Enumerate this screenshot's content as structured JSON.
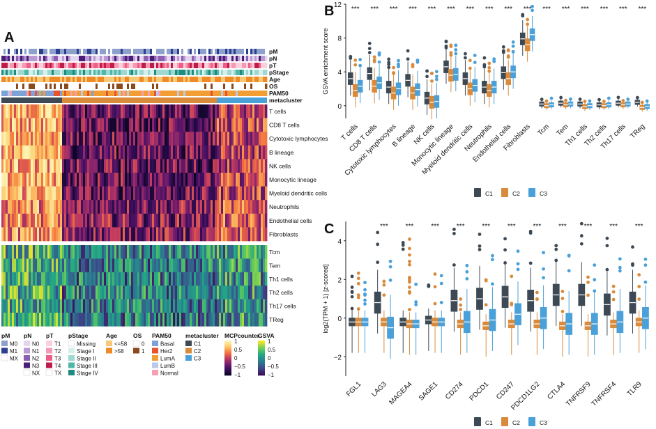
{
  "panels": {
    "A": {
      "letter": "A",
      "annotation_rows": [
        "pM",
        "pN",
        "pT",
        "pStage",
        "Age",
        "OS",
        "PAM50",
        "metacluster"
      ],
      "mcp_rows": [
        "T cells",
        "CD8 T cells",
        "Cytotoxic lymphocytes",
        "B lineage",
        "NK cells",
        "Monocytic lineage",
        "Myeloid dendritic cells",
        "Neutrophils",
        "Endothelial cells",
        "Fibroblasts"
      ],
      "gsva_rows": [
        "Tcm",
        "Tem",
        "Th1 cells",
        "Th2 cells",
        "Th17 cells",
        "TReg"
      ],
      "legend": {
        "pM": {
          "title": "pM",
          "items": [
            {
              "label": "M0",
              "color": "#8ea0cc"
            },
            {
              "label": "M1",
              "color": "#2b3f8f"
            },
            {
              "label": "MX",
              "color": "#ffffff"
            }
          ]
        },
        "pN": {
          "title": "pN",
          "items": [
            {
              "label": "N0",
              "color": "#e3d6ee"
            },
            {
              "label": "N1",
              "color": "#b99ad1"
            },
            {
              "label": "N2",
              "color": "#8a5fb1"
            },
            {
              "label": "N3",
              "color": "#4a1e78"
            },
            {
              "label": "NX",
              "color": "#ffffff"
            }
          ]
        },
        "pT": {
          "title": "pT",
          "items": [
            {
              "label": "T1",
              "color": "#fbd0dc"
            },
            {
              "label": "T2",
              "color": "#f59ab4"
            },
            {
              "label": "T3",
              "color": "#ee5e86"
            },
            {
              "label": "T4",
              "color": "#c01c4a"
            },
            {
              "label": "TX",
              "color": "#ffffff"
            }
          ]
        },
        "pStage": {
          "title": "pStage",
          "items": [
            {
              "label": "Missing",
              "color": "#ffffff"
            },
            {
              "label": "Stage I",
              "color": "#d7efec"
            },
            {
              "label": "Stage II",
              "color": "#9fd8d0"
            },
            {
              "label": "Stage III",
              "color": "#4fb7aa"
            },
            {
              "label": "Stage IV",
              "color": "#1e8a80"
            }
          ]
        },
        "Age": {
          "title": "Age",
          "items": [
            {
              "label": "<=58",
              "color": "#f7c878"
            },
            {
              "label": ">58",
              "color": "#f08a24"
            }
          ]
        },
        "OS": {
          "title": "OS",
          "items": [
            {
              "label": "0",
              "color": "#ffffff"
            },
            {
              "label": "1",
              "color": "#8a4a1c"
            }
          ]
        },
        "PAM50": {
          "title": "PAM50",
          "items": [
            {
              "label": "Basal",
              "color": "#7da2d8"
            },
            {
              "label": "Her2",
              "color": "#e6532d"
            },
            {
              "label": "LumA",
              "color": "#f29e34"
            },
            {
              "label": "LumB",
              "color": "#b9c9ea"
            },
            {
              "label": "Normal",
              "color": "#f4a2b3"
            }
          ]
        },
        "metacluster": {
          "title": "metacluster",
          "items": [
            {
              "label": "C1",
              "color": "#3d4a55"
            },
            {
              "label": "C2",
              "color": "#d98a3a"
            },
            {
              "label": "C3",
              "color": "#4aa0d8"
            }
          ]
        },
        "MCPcounter": {
          "title": "MCPcounter",
          "ticks": [
            "1",
            "0.5",
            "0",
            "−0.5",
            "−1"
          ]
        },
        "GSVA": {
          "title": "GSVA",
          "ticks": [
            "1",
            "0.5",
            "0",
            "−0.5",
            "−1"
          ]
        }
      }
    },
    "B": {
      "letter": "B"
    },
    "C": {
      "letter": "C"
    }
  },
  "colors": {
    "C1": "#3d4a55",
    "C2": "#d98a3a",
    "C3": "#4aa0d8"
  },
  "chart_data": [
    {
      "type": "box",
      "title": "",
      "ylabel": "GSVA enrichment score",
      "ylim": [
        -1.5,
        12
      ],
      "yticks": [
        0,
        4,
        8,
        12
      ],
      "categories": [
        "T cells",
        "CD8 T cells",
        "Cytotoxic lymphocytes",
        "B lineage",
        "NK cells",
        "Monocytic lineage",
        "Myeloid dendritic cells",
        "Neutrophils",
        "Endothelial cells",
        "Fibroblasts",
        "Tcm",
        "Tem",
        "Th1 cells",
        "Th2 cells",
        "Th17 cells",
        "TReg"
      ],
      "significance": [
        "***",
        "***",
        "***",
        "***",
        "***",
        "***",
        "***",
        "***",
        "***",
        "***",
        "***",
        "***",
        "***",
        "***",
        "***",
        "***"
      ],
      "legend": [
        "C1",
        "C2",
        "C3"
      ],
      "series": [
        {
          "name": "C1",
          "medians": [
            3.2,
            3.8,
            2.2,
            3.0,
            0.9,
            4.6,
            3.2,
            2.2,
            3.9,
            7.9,
            0.2,
            0.3,
            0.2,
            0.1,
            0.3,
            0.4
          ]
        },
        {
          "name": "C2",
          "medians": [
            1.8,
            2.3,
            1.5,
            1.5,
            0.4,
            3.6,
            2.0,
            1.8,
            3.2,
            7.2,
            0.0,
            0.1,
            -0.1,
            0.0,
            0.1,
            -0.2
          ]
        },
        {
          "name": "C3",
          "medians": [
            2.3,
            2.7,
            2.0,
            1.9,
            0.5,
            3.7,
            2.4,
            2.2,
            4.0,
            8.4,
            0.1,
            0.2,
            0.0,
            0.1,
            0.2,
            -0.1
          ]
        }
      ]
    },
    {
      "type": "box",
      "title": "",
      "ylabel": "log2(TPM + 1) [z-scored]",
      "ylim": [
        -3,
        5
      ],
      "yticks": [
        -2,
        0,
        2,
        4
      ],
      "categories": [
        "FGL1",
        "LAG3",
        "MAGEA4",
        "SAGE1",
        "CD274",
        "PDCD1",
        "CD247",
        "PDCD1LG2",
        "CTLA4",
        "TNFRSF9",
        "TNFRSF4",
        "TLR9"
      ],
      "significance": [
        "",
        "***",
        "***",
        "***",
        "***",
        "***",
        "***",
        "***",
        "***",
        "***",
        "***",
        "***"
      ],
      "legend": [
        "C1",
        "C2",
        "C3"
      ],
      "series": [
        {
          "name": "C1",
          "medians": [
            -0.2,
            0.8,
            -0.2,
            -0.1,
            0.9,
            1.0,
            1.1,
            0.9,
            1.2,
            1.2,
            0.7,
            0.8
          ]
        },
        {
          "name": "C2",
          "medians": [
            -0.2,
            -0.2,
            -0.3,
            -0.2,
            -0.3,
            -0.4,
            -0.3,
            -0.3,
            -0.4,
            -0.4,
            -0.3,
            -0.2
          ]
        },
        {
          "name": "C3",
          "medians": [
            -0.2,
            -0.5,
            -0.3,
            -0.2,
            -0.2,
            -0.1,
            0.2,
            0.0,
            -0.3,
            -0.3,
            -0.2,
            0.0
          ]
        }
      ]
    }
  ]
}
